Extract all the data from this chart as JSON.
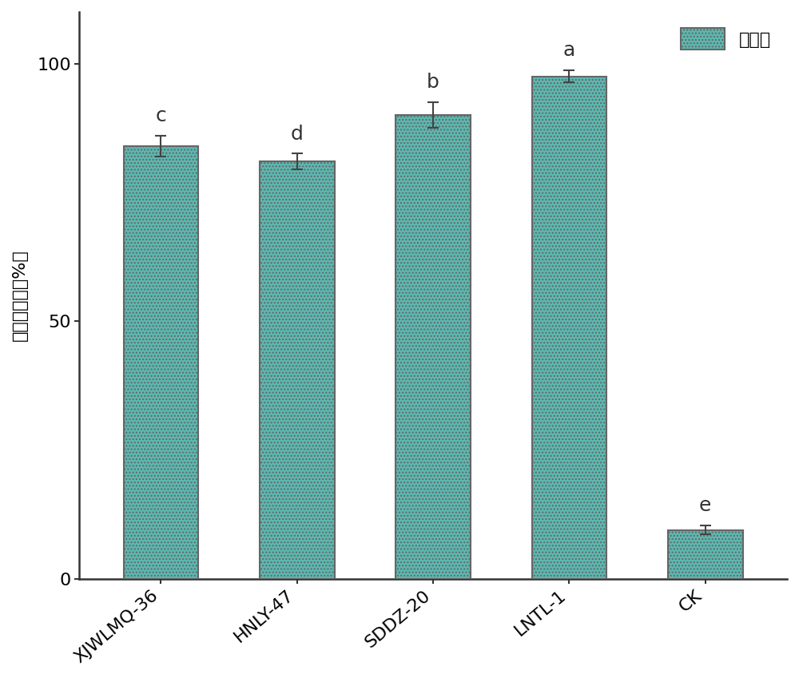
{
  "categories": [
    "XJWLMQ-36",
    "HNLY-47",
    "SDDZ-20",
    "LNTL-1",
    "CK"
  ],
  "values": [
    84.0,
    81.0,
    90.0,
    97.5,
    9.5
  ],
  "errors": [
    2.0,
    1.5,
    2.5,
    1.2,
    0.8
  ],
  "significance": [
    "c",
    "d",
    "b",
    "a",
    "e"
  ],
  "bar_color_light": "#5BB8B0",
  "bar_color_dark": "#2E7D7A",
  "bar_edge_color": "#666666",
  "ylabel": "成虫死亡率（%）",
  "yticks": [
    0,
    50,
    100
  ],
  "ylim": [
    0,
    110
  ],
  "legend_label": "死亡率",
  "background_color": "#ffffff",
  "title_fontsize": 14,
  "label_fontsize": 16,
  "tick_fontsize": 16,
  "sig_fontsize": 18
}
